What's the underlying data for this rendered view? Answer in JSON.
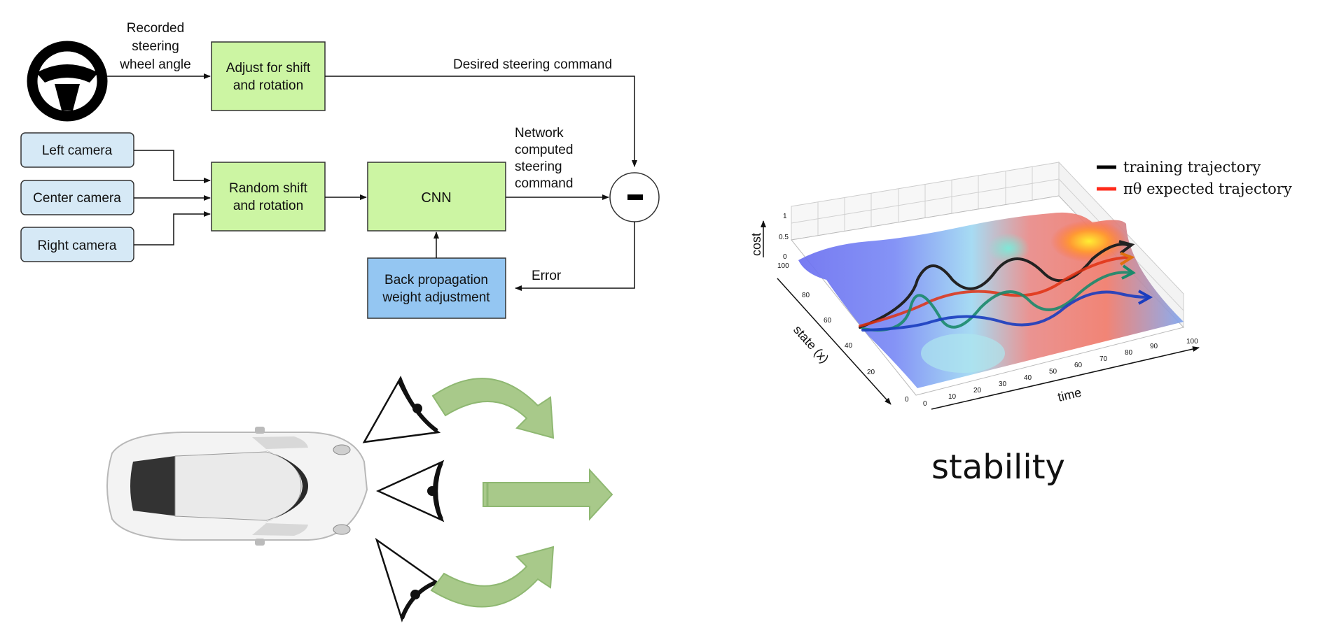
{
  "block_diagram": {
    "inputs": {
      "left_camera": "Left camera",
      "center_camera": "Center camera",
      "right_camera": "Right camera",
      "steering_wheel_label": [
        "Recorded",
        "steering",
        "wheel angle"
      ]
    },
    "blocks": {
      "adjust": [
        "Adjust for shift",
        "and rotation"
      ],
      "random_shift": [
        "Random shift",
        "and rotation"
      ],
      "cnn": "CNN",
      "backprop": [
        "Back propagation",
        "weight adjustment"
      ]
    },
    "signals": {
      "desired": "Desired steering command",
      "network_computed": [
        "Network",
        "computed",
        "steering",
        "command"
      ],
      "error": "Error",
      "minus": "–"
    },
    "colors": {
      "green_block": "#ccf5a3",
      "camera_block": "#d6e9f6",
      "blue_block": "#94c6f2",
      "arrow_green": "#9ec27a"
    }
  },
  "surface_plot": {
    "legend": [
      {
        "label": "training trajectory",
        "color": "#000000"
      },
      {
        "label": "πθ expected trajectory",
        "color": "#ff2a1a"
      }
    ],
    "axes": {
      "cost_label": "cost",
      "state_label": "state (x)",
      "time_label": "time",
      "time_ticks": [
        "0",
        "10",
        "20",
        "30",
        "40",
        "50",
        "60",
        "70",
        "80",
        "90",
        "100"
      ],
      "state_ticks": [
        "0",
        "20",
        "40",
        "60",
        "80",
        "100"
      ],
      "cost_ticks": [
        "0",
        "0.5",
        "1"
      ]
    }
  },
  "caption": "stability",
  "icons": [
    "steering-wheel-icon",
    "car-topview-icon",
    "eye-icon",
    "curved-arrow-icon",
    "straight-arrow-icon"
  ]
}
